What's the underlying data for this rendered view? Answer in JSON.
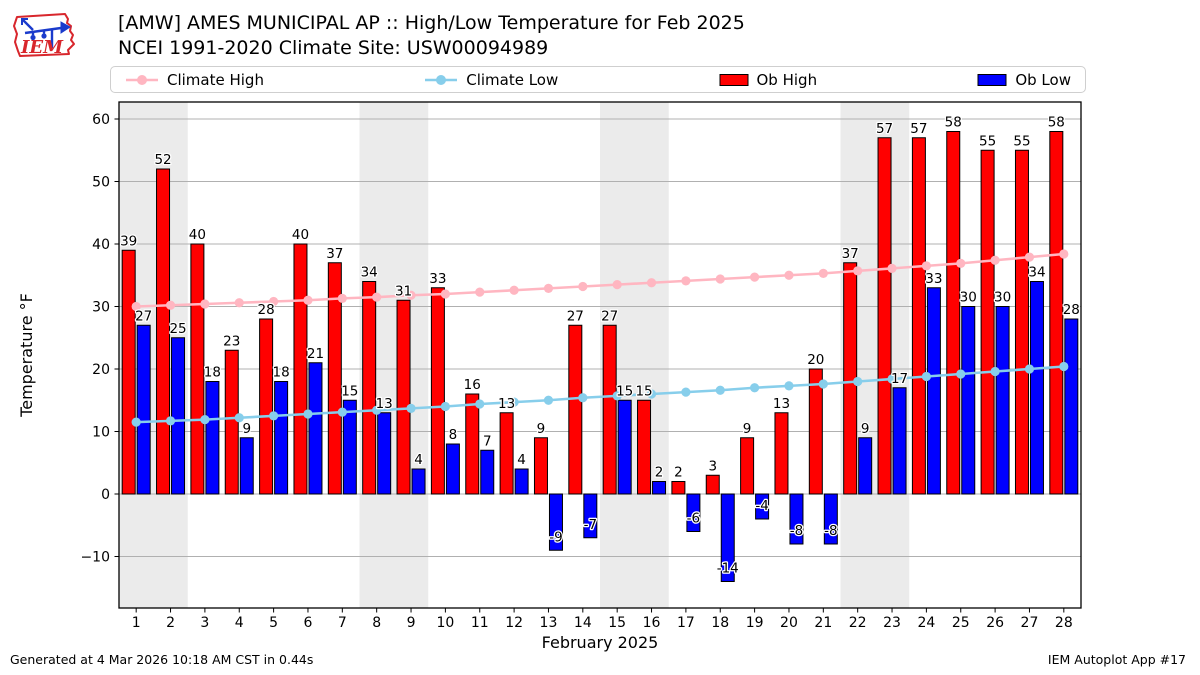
{
  "header": {
    "title": "[AMW] AMES MUNICIPAL AP :: High/Low Temperature for Feb 2025",
    "subtitle": "NCEI 1991-2020 Climate Site: USW00094989",
    "logo_text": "IEM"
  },
  "legend": [
    {
      "label": "Climate High",
      "type": "line",
      "color": "#ffb6c1"
    },
    {
      "label": "Climate Low",
      "type": "line",
      "color": "#87ceeb"
    },
    {
      "label": "Ob High",
      "type": "bar",
      "color": "#ff0000"
    },
    {
      "label": "Ob Low",
      "type": "bar",
      "color": "#0000ff"
    }
  ],
  "footer": {
    "left": "Generated at 4 Mar 2026 10:18 AM CST in 0.44s",
    "right": "IEM Autoplot App #17"
  },
  "chart_data": {
    "type": "bar",
    "title": "[AMW] AMES MUNICIPAL AP :: High/Low Temperature for Feb 2025",
    "xlabel": "February 2025",
    "ylabel": "Temperature °F",
    "categories": [
      1,
      2,
      3,
      4,
      5,
      6,
      7,
      8,
      9,
      10,
      11,
      12,
      13,
      14,
      15,
      16,
      17,
      18,
      19,
      20,
      21,
      22,
      23,
      24,
      25,
      26,
      27,
      28
    ],
    "series": [
      {
        "name": "Ob High",
        "type": "bar",
        "color": "#ff0000",
        "values": [
          39,
          52,
          40,
          23,
          28,
          40,
          37,
          34,
          31,
          33,
          16,
          13,
          9,
          27,
          27,
          15,
          2,
          3,
          9,
          13,
          20,
          37,
          57,
          57,
          58,
          55,
          55,
          58
        ]
      },
      {
        "name": "Ob Low",
        "type": "bar",
        "color": "#0000ff",
        "values": [
          27,
          25,
          18,
          9,
          18,
          21,
          15,
          13,
          4,
          8,
          7,
          4,
          -9,
          -7,
          15,
          2,
          -6,
          -14,
          -4,
          -8,
          -8,
          9,
          17,
          33,
          30,
          30,
          34,
          28
        ]
      },
      {
        "name": "Climate High",
        "type": "line",
        "color": "#ffb6c1",
        "values": [
          30.0,
          30.2,
          30.4,
          30.6,
          30.8,
          31.0,
          31.3,
          31.5,
          31.8,
          32.0,
          32.3,
          32.6,
          32.9,
          33.2,
          33.5,
          33.8,
          34.1,
          34.4,
          34.7,
          35.0,
          35.3,
          35.7,
          36.1,
          36.5,
          36.9,
          37.4,
          37.9,
          38.4
        ]
      },
      {
        "name": "Climate Low",
        "type": "line",
        "color": "#87ceeb",
        "values": [
          11.5,
          11.7,
          11.9,
          12.2,
          12.5,
          12.8,
          13.1,
          13.4,
          13.7,
          14.0,
          14.4,
          14.7,
          15.0,
          15.4,
          15.7,
          16.0,
          16.3,
          16.6,
          17.0,
          17.3,
          17.6,
          18.0,
          18.4,
          18.8,
          19.2,
          19.6,
          20.0,
          20.4
        ]
      }
    ],
    "y_ticks": [
      -10,
      0,
      10,
      20,
      30,
      40,
      50,
      60
    ],
    "ylim": [
      -18.2,
      62.7
    ],
    "xlim": [
      0.5,
      28.5
    ],
    "weekend_bands": [
      [
        0.5,
        2.5
      ],
      [
        7.5,
        9.5
      ],
      [
        14.5,
        16.5
      ],
      [
        21.5,
        23.5
      ]
    ],
    "grid": true,
    "legend_position": "top",
    "band_color": "#ebebeb",
    "grid_color": "#b0b0b0"
  }
}
